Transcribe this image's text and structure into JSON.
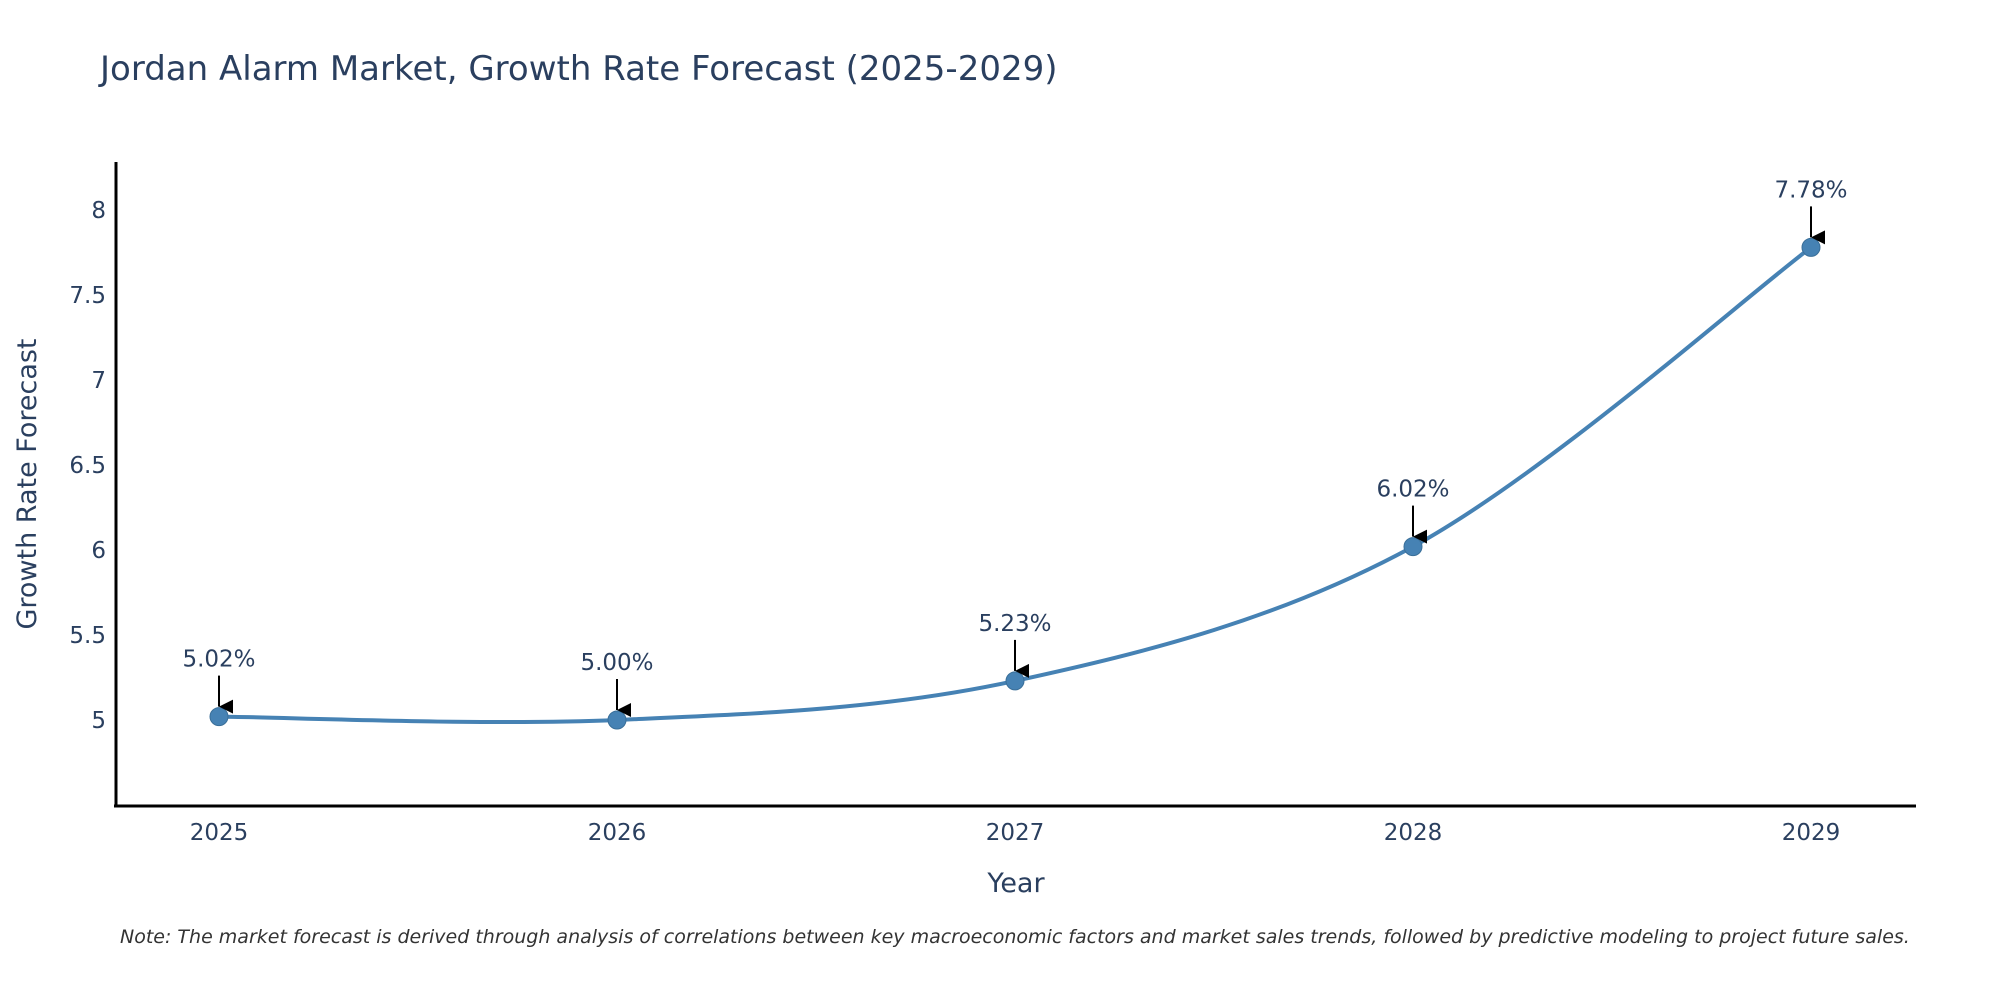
{
  "chart_data": {
    "type": "line",
    "title": "Jordan Alarm Market, Growth Rate Forecast (2025-2029)",
    "xlabel": "Year",
    "ylabel": "Growth Rate Forecast",
    "categories": [
      "2025",
      "2026",
      "2027",
      "2028",
      "2029"
    ],
    "series": [
      {
        "name": "Growth Rate Forecast",
        "values": [
          5.02,
          5.0,
          5.23,
          6.02,
          7.78
        ],
        "labels": [
          "5.02%",
          "5.00%",
          "5.23%",
          "6.02%",
          "7.78%"
        ]
      }
    ],
    "ylim": [
      4.5,
      8.27
    ],
    "yticks": [
      5,
      5.5,
      6,
      6.5,
      7,
      7.5,
      8
    ],
    "ytick_labels": [
      "5",
      "5.5",
      "6",
      "6.5",
      "7",
      "7.5",
      "8"
    ],
    "grid": false,
    "line_shape": "spline",
    "annotation_style": "arrow"
  },
  "note": "Note: The market forecast is derived through analysis of correlations between key macroeconomic factors and market sales trends, followed by predictive modeling to project future sales.",
  "colors": {
    "line": "#4682b4",
    "marker": "#4682b4",
    "axis": "#000000",
    "text": "#2a3f5f",
    "arrow": "#000000"
  }
}
